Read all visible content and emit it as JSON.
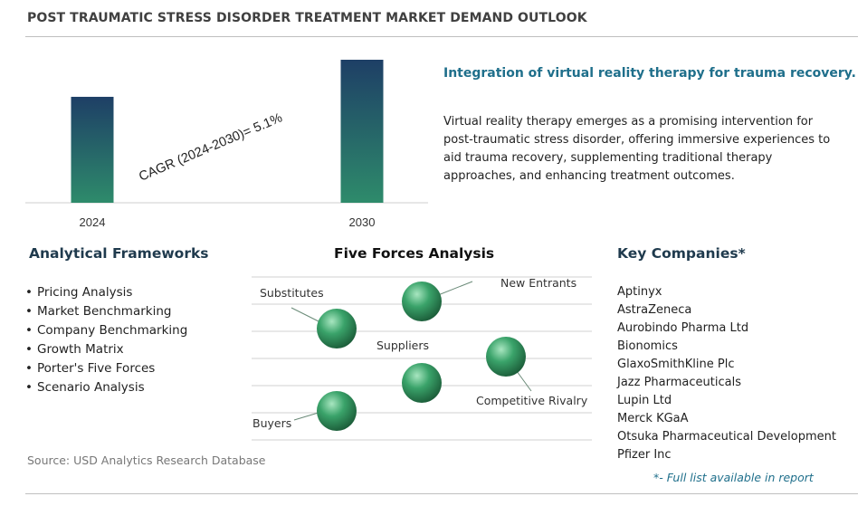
{
  "title": "POST TRAUMATIC STRESS DISORDER TREATMENT MARKET DEMAND OUTLOOK",
  "chart_data": {
    "type": "bar",
    "categories": [
      "2024",
      "2030"
    ],
    "values": [
      1.0,
      1.35
    ],
    "cagr_label": "CAGR (2024-2030)=",
    "cagr_value": "5.1%",
    "colors": {
      "bar_top": "#1e3f66",
      "bar_bottom": "#2e8b6b"
    }
  },
  "highlight": {
    "title": "Integration of virtual reality therapy for trauma recovery.",
    "body": "Virtual reality therapy emerges as a promising intervention for post-traumatic stress disorder, offering immersive experiences to aid trauma recovery, supplementing traditional therapy approaches, and enhancing treatment outcomes."
  },
  "frameworks": {
    "heading": "Analytical Frameworks",
    "items": [
      "Pricing Analysis",
      "Market Benchmarking",
      "Company Benchmarking",
      "Growth Matrix",
      "Porter's Five Forces",
      "Scenario Analysis"
    ]
  },
  "five_forces": {
    "heading": "Five Forces Analysis",
    "labels": {
      "substitutes": "Substitutes",
      "new_entrants": "New Entrants",
      "suppliers": "Suppliers",
      "competitive_rivalry": "Competitive Rivalry",
      "buyers": "Buyers"
    },
    "colors": {
      "sphere_light": "#a8e6c0",
      "sphere_mid": "#3aa36a",
      "sphere_dark": "#1c5e3a"
    }
  },
  "companies": {
    "heading": "Key Companies*",
    "items": [
      "Aptinyx",
      "AstraZeneca",
      "Aurobindo Pharma Ltd",
      "Bionomics",
      "GlaxoSmithKline Plc",
      "Jazz Pharmaceuticals",
      "Lupin Ltd",
      "Merck KGaA",
      "Otsuka Pharmaceutical Development",
      "Pfizer Inc"
    ],
    "footnote": "*- Full list available in report"
  },
  "source": "Source: USD Analytics Research Database"
}
